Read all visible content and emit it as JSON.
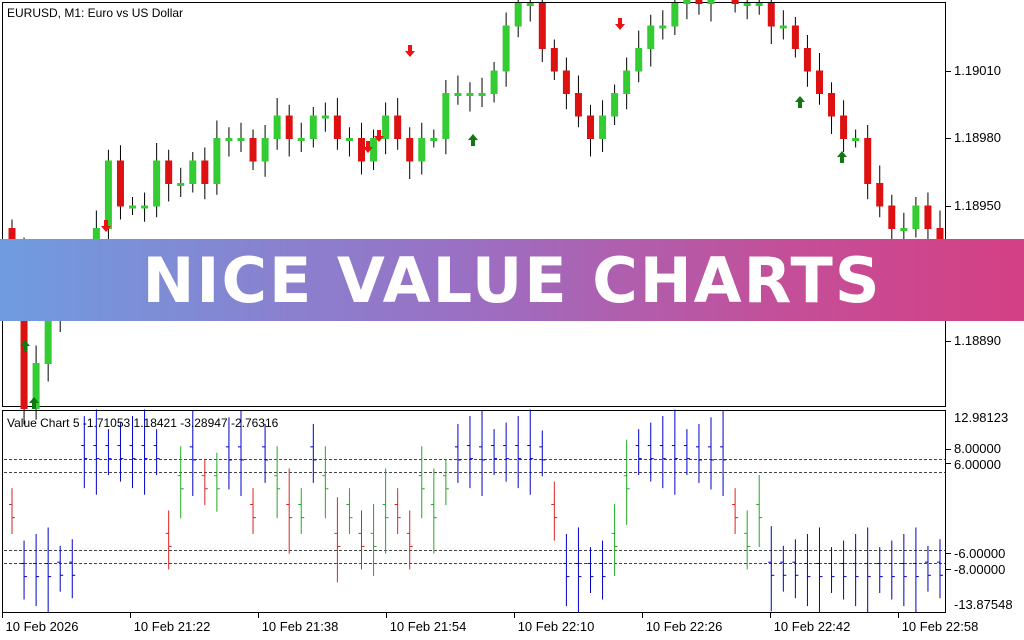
{
  "main": {
    "title": "EURUSD, M1:  Euro vs US Dollar",
    "price_labels": [
      "1.19010",
      "1.18980",
      "1.18950",
      "1.18890"
    ]
  },
  "indicator": {
    "title": "Value Chart 5 -1.71053 1.18421 -3.28947 -2.76316",
    "levels": [
      "12.98123",
      "8.00000",
      "6.00000",
      "-6.00000",
      "-8.00000",
      "-13.87548"
    ]
  },
  "time_labels": [
    "10 Feb 2026",
    "10 Feb 21:22",
    "10 Feb 21:38",
    "10 Feb 21:54",
    "10 Feb 22:10",
    "10 Feb 22:26",
    "10 Feb 22:42",
    "10 Feb 22:58"
  ],
  "banner": {
    "text": "NICE VALUE CHARTS"
  },
  "colors": {
    "bull": "#33cc33",
    "bear": "#dd1111",
    "vc_green": "#22aa22",
    "vc_red": "#dd2222",
    "vc_blue": "#0000cc",
    "arrow_up": "#117711",
    "arrow_down": "#ee1111"
  },
  "chart_data": {
    "type": "candlestick",
    "title": "EURUSD, M1:  Euro vs US Dollar",
    "y_ticks": [
      1.1901,
      1.1898,
      1.1895,
      1.1889
    ],
    "ylim": [
      1.18856,
      1.19077
    ],
    "closes": [
      1.1893,
      1.1886,
      1.1888,
      1.189,
      1.1891,
      1.1891,
      1.1892,
      1.1894,
      1.1897,
      1.1895,
      1.1895,
      1.1895,
      1.1897,
      1.1896,
      1.1896,
      1.1897,
      1.1896,
      1.1898,
      1.1898,
      1.1898,
      1.1897,
      1.1898,
      1.1899,
      1.1898,
      1.1898,
      1.1899,
      1.1899,
      1.1898,
      1.1898,
      1.1897,
      1.1898,
      1.1899,
      1.1898,
      1.1897,
      1.1898,
      1.1898,
      1.19,
      1.19,
      1.19,
      1.19,
      1.1901,
      1.1903,
      1.1904,
      1.1904,
      1.1902,
      1.1901,
      1.19,
      1.1899,
      1.1898,
      1.1899,
      1.19,
      1.1901,
      1.1902,
      1.1903,
      1.1903,
      1.1904,
      1.1905,
      1.1904,
      1.1905,
      1.1905,
      1.1904,
      1.1904,
      1.1904,
      1.1903,
      1.1903,
      1.1902,
      1.1901,
      1.19,
      1.1899,
      1.1898,
      1.1898,
      1.1896,
      1.1895,
      1.1894,
      1.1894,
      1.1895,
      1.1894,
      1.1893
    ],
    "up_arrows": 6,
    "down_arrows": 6,
    "indicator": {
      "name": "Value Chart 5",
      "values": [
        -1.71053,
        1.18421,
        -3.28947,
        -2.76316
      ],
      "ylim": [
        -13.87548,
        12.98123
      ],
      "levels": [
        8,
        6,
        -6,
        -8
      ]
    }
  }
}
